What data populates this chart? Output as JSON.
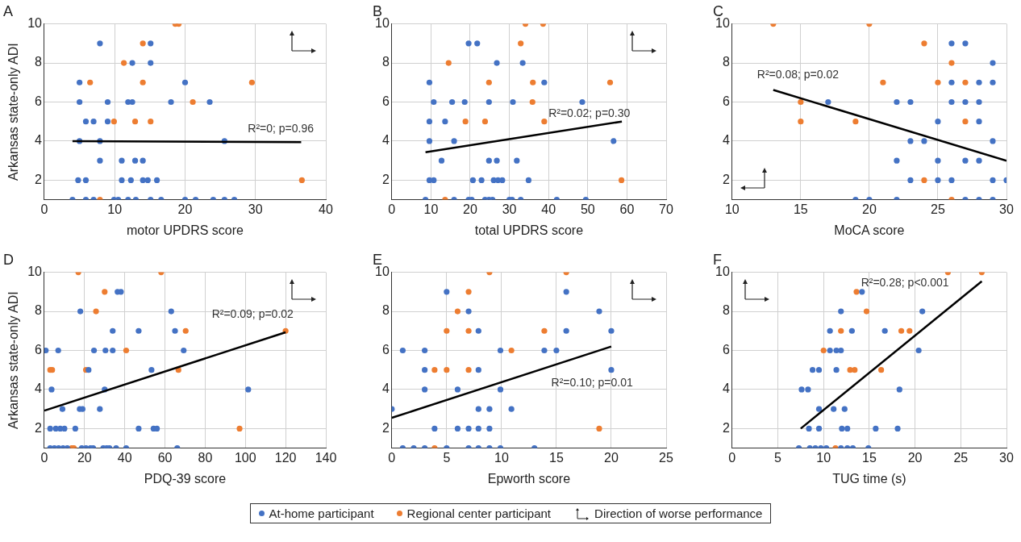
{
  "chart_data": [
    {
      "type": "scatter",
      "title": "A",
      "xlabel": "motor UPDRS score",
      "ylabel": "Arkansas state-only ADI",
      "xlim": [
        0,
        40
      ],
      "xticks": [
        0,
        10,
        20,
        30,
        40
      ],
      "ylim": [
        1,
        10
      ],
      "yticks": [
        2,
        4,
        6,
        8,
        10
      ],
      "grid": true,
      "legend": "bottom",
      "annotations": [
        "R²=0; p=0.96",
        "Direction of worse performance"
      ],
      "series": [
        {
          "name": "At-home participant",
          "color": "#4472c4",
          "marker": "circle",
          "x": [
            7.9,
            15.1,
            12.5,
            15.1,
            5,
            20,
            5,
            9,
            11.9,
            12.5,
            18,
            23.5,
            5.9,
            7,
            9,
            5,
            7.9,
            25.6,
            7.9,
            11,
            12.9,
            14,
            4.8,
            5.9,
            11,
            12.3,
            14,
            14.7,
            16,
            4,
            5.9,
            7,
            9.9,
            10.5,
            11.9,
            13,
            15.1,
            16.6,
            20,
            21.5,
            24,
            25.6,
            27
          ],
          "values": [
            9,
            9,
            8,
            8,
            7,
            7,
            6,
            6,
            6,
            6,
            6,
            6,
            5,
            5,
            5,
            4,
            4,
            4,
            3,
            3,
            3,
            3,
            2,
            2,
            2,
            2,
            2,
            2,
            2,
            1,
            1,
            1,
            1,
            1,
            1,
            1,
            1,
            1,
            1,
            1,
            1,
            1,
            1
          ]
        },
        {
          "name": "Regional center participant",
          "color": "#ed7d31",
          "marker": "circle",
          "x": [
            18.6,
            19.1,
            14,
            11.3,
            6.5,
            14,
            29.5,
            21.1,
            9.9,
            12.9,
            15.1,
            36.6,
            7.9
          ],
          "values": [
            10,
            10,
            9,
            8,
            7,
            7,
            7,
            6,
            5,
            5,
            5,
            2,
            1
          ]
        },
        {
          "type": "line",
          "color": "#000000",
          "x": [
            4,
            36.5
          ],
          "values": [
            4,
            3.95
          ]
        }
      ]
    },
    {
      "type": "scatter",
      "title": "B",
      "xlabel": "total UPDRS score",
      "xlim": [
        0,
        70
      ],
      "xticks": [
        0,
        10,
        20,
        30,
        40,
        50,
        60,
        70
      ],
      "ylim": [
        1,
        10
      ],
      "yticks": [
        2,
        4,
        6,
        8,
        10
      ],
      "grid": true,
      "annotations": [
        "R²=0.02; p=0.30"
      ],
      "series": [
        {
          "color": "#4472c4",
          "marker": "circle",
          "x": [
            19.6,
            21.8,
            26.8,
            33.4,
            9.6,
            38.9,
            10.7,
            15.4,
            18.6,
            24.8,
            30.9,
            48.6,
            9.6,
            13.6,
            9.6,
            15.9,
            56.6,
            12.7,
            24.8,
            26.8,
            31.9,
            9.6,
            10.7,
            20.7,
            22.9,
            26,
            27.1,
            28.2,
            34.9,
            8.6,
            15.9,
            19.6,
            20.4,
            23.8,
            24.8,
            25.7,
            30,
            30.7,
            32.9,
            42.1,
            49.5
          ],
          "values": [
            9,
            9,
            8,
            8,
            7,
            7,
            6,
            6,
            6,
            6,
            6,
            6,
            5,
            5,
            4,
            4,
            4,
            3,
            3,
            3,
            3,
            2,
            2,
            2,
            2,
            2,
            2,
            2,
            2,
            1,
            1,
            1,
            1,
            1,
            1,
            1,
            1,
            1,
            1,
            1,
            1
          ]
        },
        {
          "color": "#ed7d31",
          "marker": "circle",
          "x": [
            34.1,
            38.6,
            32.9,
            14.5,
            24.8,
            36,
            55.7,
            35.9,
            18.8,
            23.8,
            38.9,
            58.6,
            13.6
          ],
          "values": [
            10,
            10,
            9,
            8,
            7,
            7,
            7,
            6,
            5,
            5,
            5,
            2,
            1
          ]
        },
        {
          "type": "line",
          "color": "#000000",
          "x": [
            8.6,
            58.7
          ],
          "values": [
            3.43,
            5.0
          ]
        }
      ]
    },
    {
      "type": "scatter",
      "title": "C",
      "xlabel": "MoCA score",
      "xlim": [
        10,
        30
      ],
      "xticks": [
        10,
        15,
        20,
        25,
        30
      ],
      "ylim": [
        1,
        10
      ],
      "yticks": [
        2,
        4,
        6,
        8,
        10
      ],
      "grid": true,
      "annotations": [
        "R²=0.08; p=0.02"
      ],
      "series": [
        {
          "color": "#4472c4",
          "marker": "circle",
          "x": [
            26,
            27,
            29,
            26,
            28,
            29,
            17,
            22,
            23,
            26,
            27,
            28,
            25,
            28,
            23,
            24,
            29,
            22,
            25,
            27,
            28,
            23,
            25,
            26,
            29,
            30,
            19,
            20,
            22,
            27,
            28,
            29
          ],
          "values": [
            9,
            9,
            8,
            7,
            7,
            7,
            6,
            6,
            6,
            6,
            6,
            6,
            5,
            5,
            4,
            4,
            4,
            3,
            3,
            3,
            3,
            2,
            2,
            2,
            2,
            2,
            1,
            1,
            1,
            1,
            1,
            1
          ]
        },
        {
          "color": "#ed7d31",
          "marker": "circle",
          "x": [
            13,
            20,
            24,
            26,
            21,
            25,
            27,
            15,
            15,
            19,
            27,
            24,
            26
          ],
          "values": [
            10,
            10,
            9,
            8,
            7,
            7,
            7,
            6,
            5,
            5,
            5,
            2,
            1
          ]
        },
        {
          "type": "line",
          "color": "#000000",
          "x": [
            13,
            30
          ],
          "values": [
            6.62,
            2.99
          ]
        }
      ]
    },
    {
      "type": "scatter",
      "title": "D",
      "xlabel": "PDQ-39 score",
      "ylabel": "Arkansas state-only ADI",
      "xlim": [
        0,
        140
      ],
      "xticks": [
        0,
        20,
        40,
        60,
        80,
        100,
        120,
        140
      ],
      "ylim": [
        1,
        10
      ],
      "yticks": [
        2,
        4,
        6,
        8,
        10
      ],
      "grid": true,
      "annotations": [
        "R²=0.09; p=0.02"
      ],
      "series": [
        {
          "color": "#4472c4",
          "marker": "circle",
          "x": [
            36.4,
            38.1,
            17.9,
            63.1,
            34,
            46.9,
            65,
            0.7,
            6.9,
            24.7,
            30.4,
            34,
            69.3,
            53.3,
            22,
            3.6,
            30,
            101.4,
            9,
            17.6,
            19,
            27.6,
            2.9,
            5.7,
            7.9,
            10,
            15.4,
            46.9,
            54.3,
            56,
            2.9,
            5,
            7.1,
            9.3,
            11.4,
            18.6,
            20.7,
            22.9,
            24.3,
            29.3,
            31,
            32.4,
            35.7,
            40.7,
            66.1
          ],
          "values": [
            9,
            9,
            8,
            8,
            7,
            7,
            7,
            6,
            6,
            6,
            6,
            6,
            6,
            5,
            5,
            4,
            4,
            4,
            3,
            3,
            3,
            3,
            2,
            2,
            2,
            2,
            2,
            2,
            2,
            2,
            1,
            1,
            1,
            1,
            1,
            1,
            1,
            1,
            1,
            1,
            1,
            1,
            1,
            1,
            1
          ]
        },
        {
          "color": "#ed7d31",
          "marker": "circle",
          "x": [
            16.9,
            58.1,
            30,
            25.7,
            70.3,
            120,
            40.7,
            2.9,
            3.9,
            20.7,
            66.7,
            97.1,
            13.6,
            14.7
          ],
          "values": [
            10,
            10,
            9,
            8,
            7,
            7,
            6,
            5,
            5,
            5,
            5,
            2,
            1,
            1
          ]
        },
        {
          "type": "line",
          "color": "#000000",
          "x": [
            0,
            120
          ],
          "values": [
            2.92,
            6.93
          ]
        }
      ]
    },
    {
      "type": "scatter",
      "title": "E",
      "xlabel": "Epworth score",
      "xlim": [
        0,
        25
      ],
      "xticks": [
        0,
        5,
        10,
        15,
        20,
        25
      ],
      "ylim": [
        1,
        10
      ],
      "yticks": [
        2,
        4,
        6,
        8,
        10
      ],
      "grid": true,
      "annotations": [
        "R²=0.10; p=0.01"
      ],
      "series": [
        {
          "color": "#4472c4",
          "marker": "circle",
          "x": [
            5,
            15.9,
            7,
            18.9,
            7.9,
            15.9,
            20,
            1,
            3,
            9.9,
            13.9,
            15,
            3,
            7.9,
            20,
            3,
            6,
            9.9,
            0,
            7.9,
            8.9,
            10.9,
            3.9,
            6,
            7,
            7.9,
            8.9,
            1,
            2,
            3,
            5,
            7,
            7.9,
            8.9,
            9.9,
            13
          ],
          "values": [
            9,
            9,
            8,
            8,
            7,
            7,
            7,
            6,
            6,
            6,
            6,
            6,
            5,
            5,
            5,
            4,
            4,
            4,
            3,
            3,
            3,
            3,
            2,
            2,
            2,
            2,
            2,
            1,
            1,
            1,
            1,
            1,
            1,
            1,
            1,
            1
          ]
        },
        {
          "color": "#ed7d31",
          "marker": "circle",
          "x": [
            8.9,
            15.9,
            7,
            6,
            5,
            7,
            13.9,
            10.9,
            3.9,
            5,
            7,
            18.9,
            3.9
          ],
          "values": [
            10,
            10,
            9,
            8,
            7,
            7,
            7,
            6,
            5,
            5,
            5,
            2,
            1
          ]
        },
        {
          "type": "line",
          "color": "#000000",
          "x": [
            0,
            20
          ],
          "values": [
            2.55,
            6.2
          ]
        }
      ]
    },
    {
      "type": "scatter",
      "title": "F",
      "xlabel": "TUG time (s)",
      "xlim": [
        0,
        30
      ],
      "xticks": [
        0,
        5,
        10,
        15,
        20,
        25,
        30
      ],
      "ylim": [
        1,
        10
      ],
      "yticks": [
        2,
        4,
        6,
        8,
        10
      ],
      "grid": true,
      "annotations": [
        "R²=0.28; p<0.001"
      ],
      "series": [
        {
          "color": "#4472c4",
          "marker": "circle",
          "x": [
            14.2,
            11.9,
            20.8,
            10.7,
            13.1,
            16.7,
            10.7,
            11.4,
            11.9,
            20.4,
            8.8,
            9.5,
            11.4,
            7.6,
            8.3,
            18.3,
            9.5,
            11.1,
            12.3,
            8.4,
            9.5,
            12,
            12.6,
            15.7,
            18.1,
            7.3,
            8.5,
            9.1,
            9.7,
            10.3,
            11.9,
            12.6,
            13.2,
            14.9
          ],
          "values": [
            9,
            8,
            8,
            7,
            7,
            7,
            6,
            6,
            6,
            6,
            5,
            5,
            5,
            4,
            4,
            4,
            3,
            3,
            3,
            2,
            2,
            2,
            2,
            2,
            2,
            1,
            1,
            1,
            1,
            1,
            1,
            1,
            1,
            1
          ]
        },
        {
          "color": "#ed7d31",
          "marker": "circle",
          "x": [
            23.6,
            27.3,
            13.6,
            14.7,
            11.9,
            18.5,
            19.4,
            10,
            12.9,
            13.4,
            16.3,
            11.3
          ],
          "values": [
            10,
            10,
            9,
            8,
            7,
            7,
            7,
            6,
            5,
            5,
            5,
            1
          ]
        },
        {
          "type": "line",
          "color": "#000000",
          "x": [
            7.5,
            27.3
          ],
          "values": [
            2.0,
            9.54
          ]
        }
      ]
    }
  ]
}
